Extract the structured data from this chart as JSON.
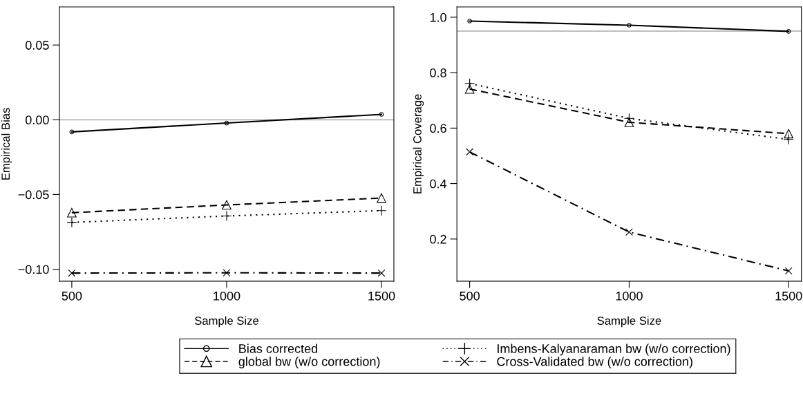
{
  "chart_data": [
    {
      "type": "line",
      "xlabel": "Sample Size",
      "ylabel": "Empirical Bias",
      "x": [
        500,
        1000,
        1500
      ],
      "xlim": [
        460,
        1540
      ],
      "xticks": [
        500,
        1000,
        1500
      ],
      "ylim": [
        -0.108,
        0.0755
      ],
      "yticks": [
        {
          "value": -0.1,
          "label": "−0.10"
        },
        {
          "value": -0.05,
          "label": "−0.05"
        },
        {
          "value": 0,
          "label": "0.00"
        },
        {
          "value": 0.05,
          "label": "0.05"
        }
      ],
      "grid": false,
      "legend": "bottom",
      "ref_lines": [
        {
          "axis": "y",
          "value": 0,
          "color": "#bebebe"
        }
      ],
      "series": [
        {
          "name": "Bias corrected",
          "color": "#000000",
          "marker": "circle",
          "line_style": "solid",
          "values": [
            -0.0081,
            -0.0022,
            0.0036
          ]
        },
        {
          "name": "global bw (w/o correction)",
          "color": "#000000",
          "marker": "triangle",
          "line_style": "dashed",
          "values": [
            -0.0622,
            -0.057,
            -0.0524
          ]
        },
        {
          "name": "Imbens-Kalyanaraman bw (w/o correction)",
          "color": "#000000",
          "marker": "plus",
          "line_style": "dotted",
          "values": [
            -0.0687,
            -0.0644,
            -0.0608
          ]
        },
        {
          "name": "Cross-Validated bw (w/o correction)",
          "color": "#000000",
          "marker": "cross",
          "line_style": "dashdot",
          "values": [
            -0.1026,
            -0.1024,
            -0.1026
          ]
        }
      ]
    },
    {
      "type": "line",
      "xlabel": "Sample Size",
      "ylabel": "Empirical Coverage",
      "x": [
        500,
        1000,
        1500
      ],
      "xlim": [
        460,
        1540
      ],
      "xticks": [
        500,
        1000,
        1500
      ],
      "ylim": [
        0.048,
        1.037
      ],
      "yticks": [
        0.2,
        0.4,
        0.6,
        0.8,
        {
          "value": 1.0,
          "label": "1.0"
        }
      ],
      "grid": false,
      "legend": "bottom",
      "ref_lines": [
        {
          "axis": "y",
          "value": 0.95,
          "color": "#bebebe"
        }
      ],
      "series": [
        {
          "name": "Bias corrected",
          "color": "#000000",
          "marker": "circle",
          "line_style": "solid",
          "values": [
            0.986,
            0.971,
            0.949
          ]
        },
        {
          "name": "global bw (w/o correction)",
          "color": "#000000",
          "marker": "triangle",
          "line_style": "dashed",
          "values": [
            0.741,
            0.621,
            0.58
          ]
        },
        {
          "name": "Imbens-Kalyanaraman bw (w/o correction)",
          "color": "#000000",
          "marker": "plus",
          "line_style": "dotted",
          "values": [
            0.761,
            0.635,
            0.559
          ]
        },
        {
          "name": "Cross-Validated bw (w/o correction)",
          "color": "#000000",
          "marker": "cross",
          "line_style": "dashdot",
          "values": [
            0.514,
            0.225,
            0.085
          ]
        }
      ]
    }
  ]
}
